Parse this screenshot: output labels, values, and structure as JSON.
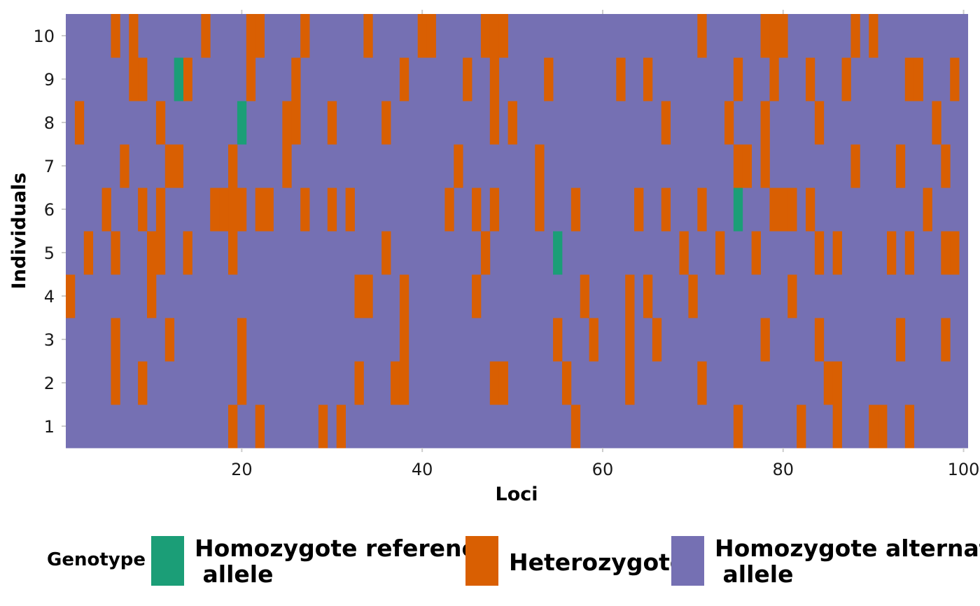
{
  "chart_data": {
    "type": "heatmap",
    "title": "",
    "xlabel": "Loci",
    "ylabel": "Individuals",
    "xlim": [
      1,
      100
    ],
    "x_ticks": [
      20,
      40,
      60,
      80,
      100
    ],
    "individuals": [
      "1",
      "2",
      "3",
      "4",
      "5",
      "6",
      "7",
      "8",
      "9",
      "10"
    ],
    "legend_title": "Genotype",
    "legend_position": "bottom",
    "categories": [
      {
        "code": 0,
        "label": "Homozygote reference\n allele",
        "color": "#1B9E77"
      },
      {
        "code": 1,
        "label": "Heterozygote",
        "color": "#D95F02"
      },
      {
        "code": 2,
        "label": "Homozygote alternate\n allele",
        "color": "#7570B3"
      }
    ],
    "default_code": 2,
    "heterozygote_loci": {
      "1": [
        19,
        22,
        29,
        31,
        57,
        75,
        82,
        86,
        90,
        91,
        94
      ],
      "2": [
        6,
        9,
        20,
        33,
        37,
        38,
        48,
        49,
        56,
        63,
        71,
        85,
        86
      ],
      "3": [
        6,
        12,
        20,
        38,
        55,
        59,
        63,
        66,
        78,
        84,
        93,
        98
      ],
      "4": [
        1,
        10,
        33,
        34,
        38,
        46,
        58,
        63,
        65,
        70,
        81
      ],
      "5": [
        3,
        6,
        10,
        11,
        14,
        19,
        36,
        47,
        69,
        73,
        77,
        84,
        86,
        92,
        94,
        98,
        99
      ],
      "6": [
        5,
        9,
        11,
        17,
        18,
        19,
        20,
        22,
        23,
        27,
        30,
        32,
        43,
        46,
        48,
        53,
        57,
        64,
        67,
        71,
        79,
        80,
        81,
        83,
        96
      ],
      "7": [
        7,
        12,
        13,
        19,
        25,
        44,
        53,
        75,
        76,
        78,
        88,
        93,
        98
      ],
      "8": [
        2,
        11,
        25,
        26,
        30,
        36,
        48,
        50,
        67,
        74,
        78,
        84,
        97
      ],
      "9": [
        8,
        9,
        14,
        21,
        26,
        38,
        45,
        48,
        54,
        62,
        65,
        75,
        79,
        83,
        87,
        94,
        95,
        99
      ],
      "10": [
        6,
        8,
        16,
        21,
        22,
        27,
        34,
        40,
        41,
        47,
        48,
        49,
        71,
        78,
        79,
        80,
        88,
        90
      ]
    },
    "homozygote_reference_loci": {
      "5": [
        55
      ],
      "6": [
        75
      ],
      "8": [
        20
      ],
      "9": [
        13
      ]
    }
  }
}
